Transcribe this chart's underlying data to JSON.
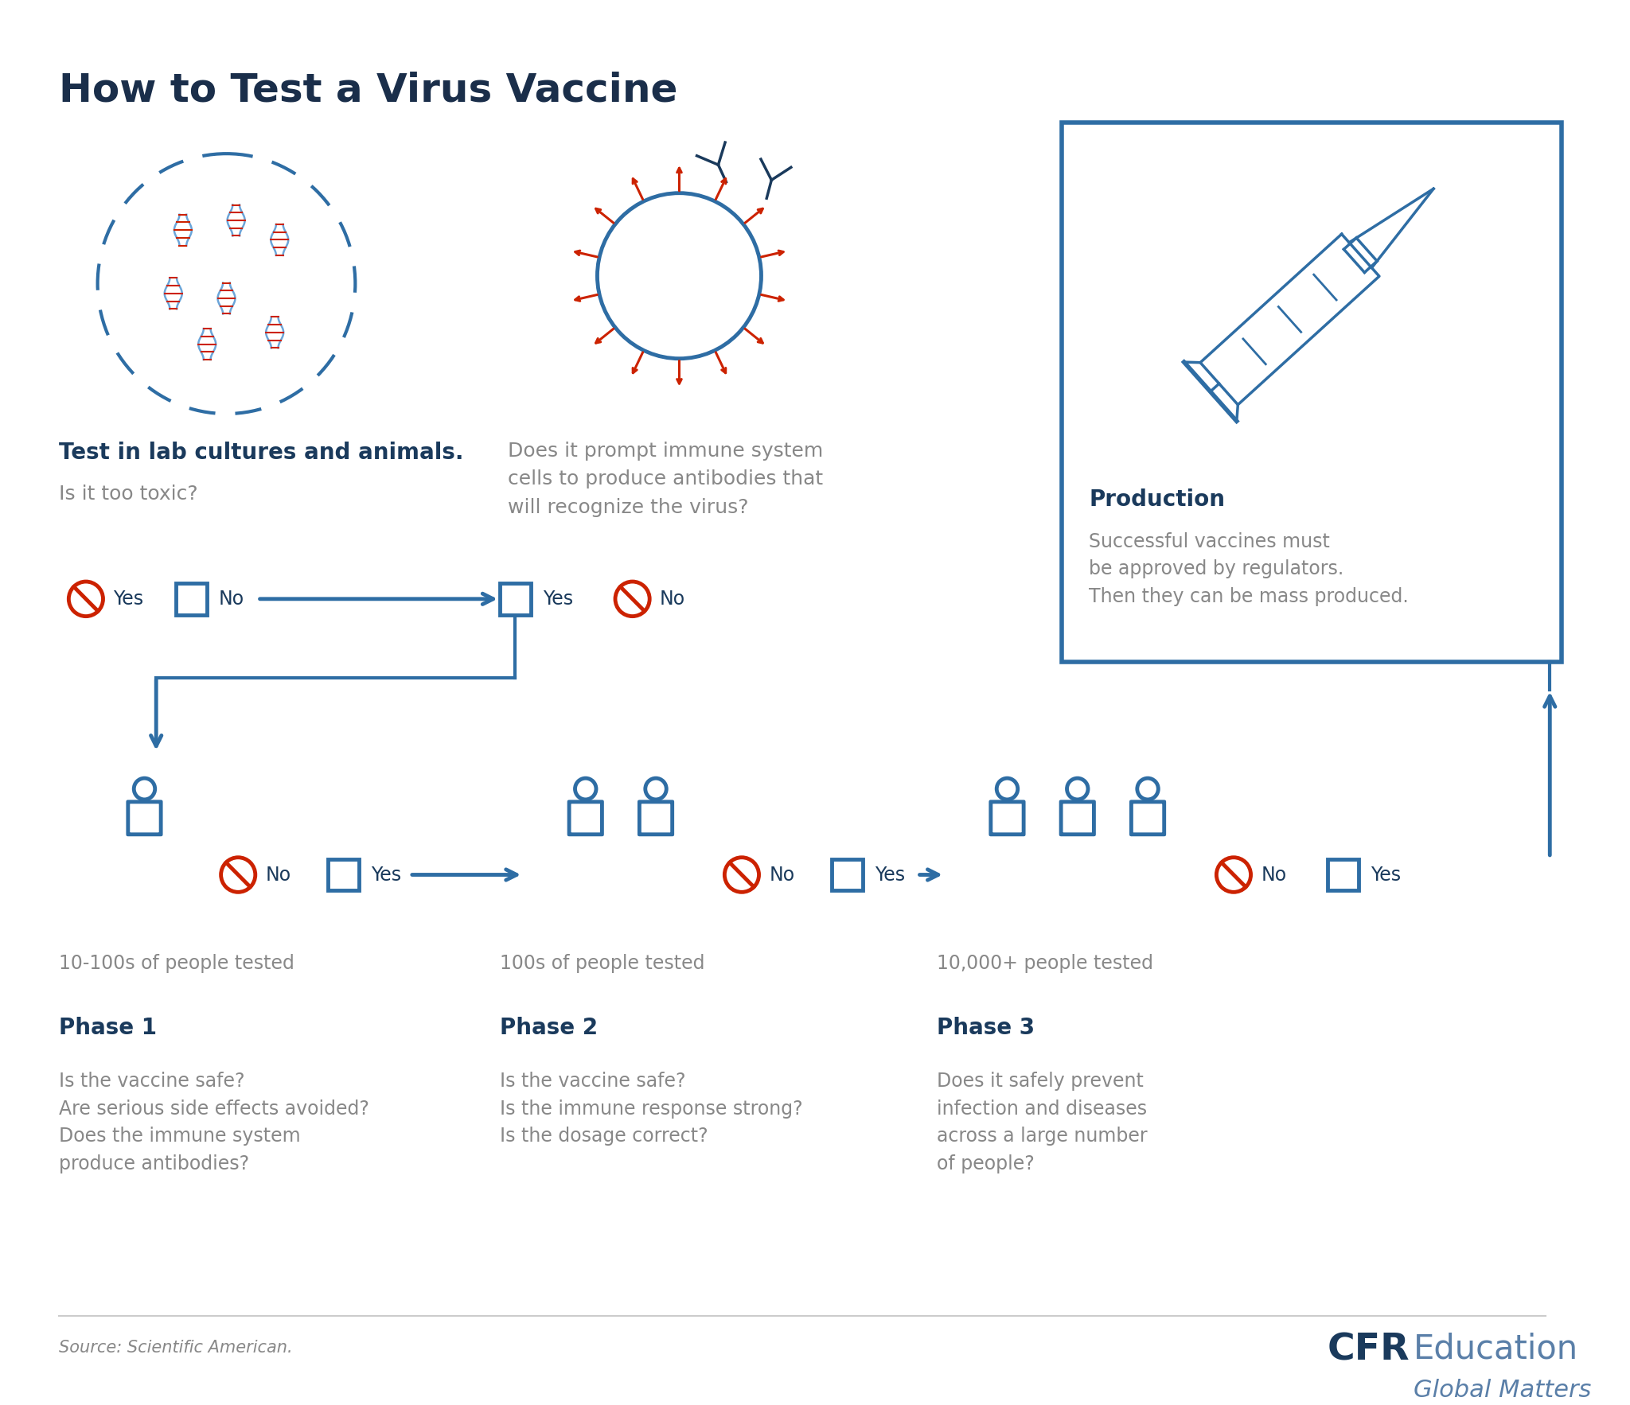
{
  "title": "How to Test a Virus Vaccine",
  "title_color": "#1a2e4a",
  "title_fontsize": 36,
  "background_color": "#ffffff",
  "blue_dark": "#1a3a5c",
  "blue_mid": "#2e6da4",
  "blue_light": "#5b9bd5",
  "red_color": "#cc2200",
  "gray_color": "#888888",
  "source_text": "Source: Scientific American.",
  "cfr_text": "CFR",
  "education_text": "Education",
  "global_matters_text": "Global Matters",
  "section1_bold": "Test in lab cultures and animals.",
  "section1_normal": "Is it too toxic?",
  "section2_normal": "Does it prompt immune system\ncells to produce antibodies that\nwill recognize the virus?",
  "section3_bold": "Production",
  "section3_normal": "Successful vaccines must\nbe approved by regulators.\nThen they can be mass produced.",
  "phase1_bold": "Phase 1",
  "phase1_normal": "Is the vaccine safe?\nAre serious side effects avoided?\nDoes the immune system\nproduce antibodies?",
  "phase1_count": "10-100s of people tested",
  "phase2_bold": "Phase 2",
  "phase2_normal": "Is the vaccine safe?\nIs the immune response strong?\nIs the dosage correct?",
  "phase2_count": "100s of people tested",
  "phase3_bold": "Phase 3",
  "phase3_normal": "Does it safely prevent\ninfection and diseases\nacross a large number\nof people?",
  "phase3_count": "10,000+ people tested"
}
